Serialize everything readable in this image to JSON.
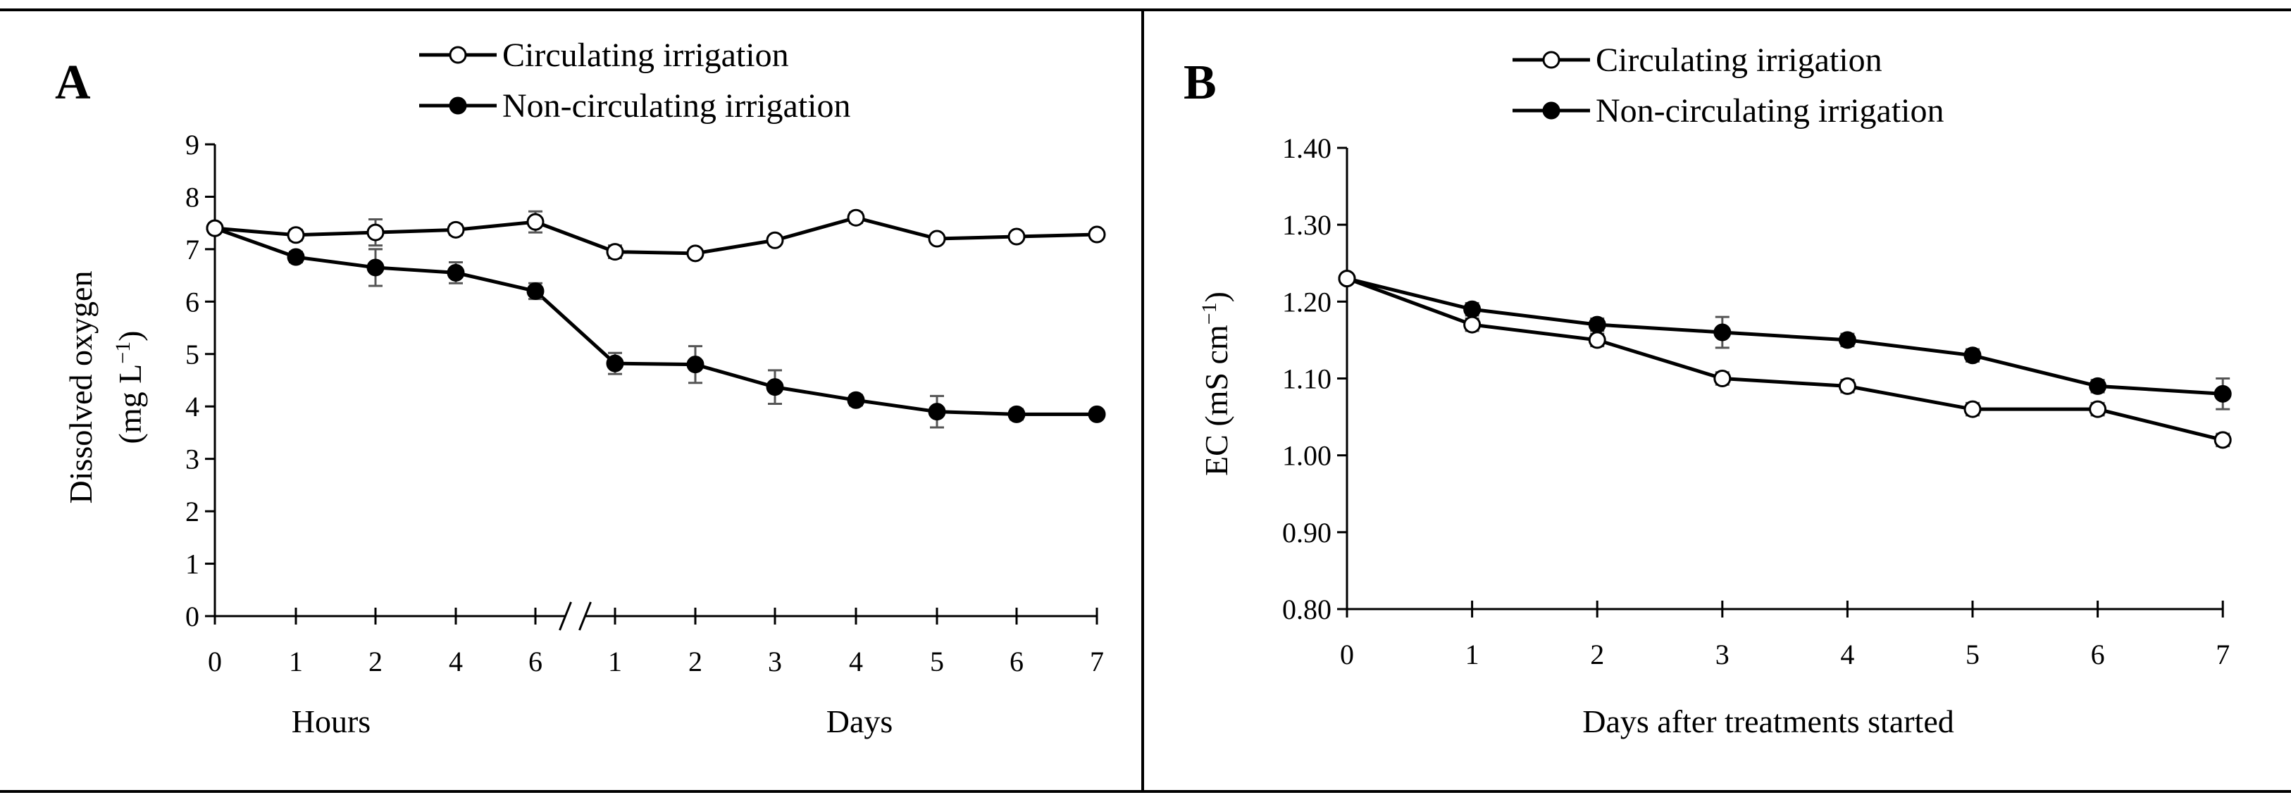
{
  "chart_data": [
    {
      "panel": "A",
      "type": "line",
      "ylabel_line1": "Dissolved oxygen",
      "ylabel_line2_base": "(mg L",
      "ylabel_line2_sup": "−1",
      "ylabel_line2_end": ")",
      "ylim": [
        0,
        9
      ],
      "yticks": [
        "0",
        "1",
        "2",
        "3",
        "4",
        "5",
        "6",
        "7",
        "8",
        "9"
      ],
      "x_tick_labels": [
        "0",
        "1",
        "2",
        "4",
        "6",
        "1",
        "2",
        "3",
        "4",
        "5",
        "6",
        "7"
      ],
      "x_group_labels": [
        "Hours",
        "Days"
      ],
      "legend": [
        "Circulating irrigation",
        "Non-circulating irrigation"
      ],
      "legend_position": "top-center",
      "axis_break_after_index": 4,
      "series": [
        {
          "name": "Circulating irrigation",
          "marker": "open-circle",
          "values": [
            7.4,
            7.27,
            7.32,
            7.37,
            7.52,
            6.95,
            6.92,
            7.17,
            7.6,
            7.2,
            7.24,
            7.28
          ],
          "errors": [
            0.05,
            0.1,
            0.25,
            0.1,
            0.2,
            0.12,
            0.05,
            0.05,
            0.1,
            0.08,
            0.06,
            0.05
          ]
        },
        {
          "name": "Non-circulating irrigation",
          "marker": "filled-circle",
          "values": [
            7.4,
            6.85,
            6.65,
            6.55,
            6.2,
            4.82,
            4.8,
            4.37,
            4.12,
            3.9,
            3.85,
            3.85
          ],
          "errors": [
            0.05,
            0.1,
            0.35,
            0.2,
            0.15,
            0.2,
            0.35,
            0.32,
            0.1,
            0.3,
            0.1,
            0.08
          ]
        }
      ]
    },
    {
      "panel": "B",
      "type": "line",
      "ylabel_base": "EC (mS cm",
      "ylabel_sup": "−1",
      "ylabel_end": ")",
      "xlabel": "Days after treatments started",
      "ylim": [
        0.8,
        1.4
      ],
      "yticks": [
        "0.80",
        "0.90",
        "1.00",
        "1.10",
        "1.20",
        "1.30",
        "1.40"
      ],
      "x": [
        0,
        1,
        2,
        3,
        4,
        5,
        6,
        7
      ],
      "x_tick_labels": [
        "0",
        "1",
        "2",
        "3",
        "4",
        "5",
        "6",
        "7"
      ],
      "legend": [
        "Circulating irrigation",
        "Non-circulating irrigation"
      ],
      "legend_position": "top-center",
      "series": [
        {
          "name": "Circulating irrigation",
          "marker": "open-circle",
          "values": [
            1.23,
            1.17,
            1.15,
            1.1,
            1.09,
            1.06,
            1.06,
            1.02
          ],
          "errors": [
            0.005,
            0.008,
            0.008,
            0.008,
            0.008,
            0.008,
            0.008,
            0.008
          ]
        },
        {
          "name": "Non-circulating irrigation",
          "marker": "filled-circle",
          "values": [
            1.23,
            1.19,
            1.17,
            1.16,
            1.15,
            1.13,
            1.09,
            1.08
          ],
          "errors": [
            0.005,
            0.008,
            0.008,
            0.02,
            0.008,
            0.008,
            0.008,
            0.02
          ]
        }
      ]
    }
  ]
}
